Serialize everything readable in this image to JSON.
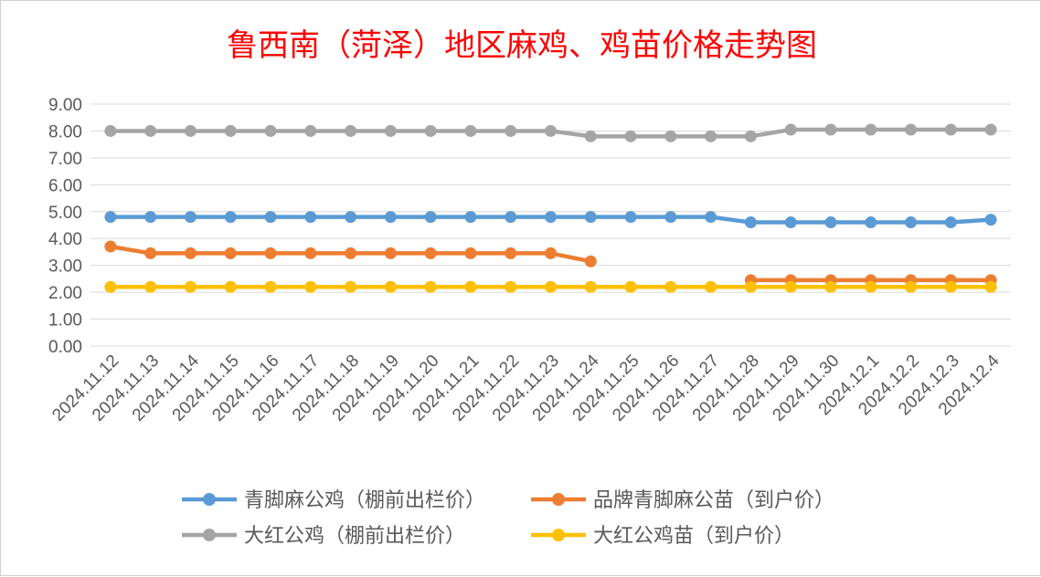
{
  "chart_data": {
    "type": "line",
    "title": "鲁西南（菏泽）地区麻鸡、鸡苗价格走势图",
    "xlabel": "",
    "ylabel": "",
    "ylim": [
      0,
      9
    ],
    "y_ticks": [
      "0.00",
      "1.00",
      "2.00",
      "3.00",
      "4.00",
      "5.00",
      "6.00",
      "7.00",
      "8.00",
      "9.00"
    ],
    "categories": [
      "2024.11.12",
      "2024.11.13",
      "2024.11.14",
      "2024.11.15",
      "2024.11.16",
      "2024.11.17",
      "2024.11.18",
      "2024.11.19",
      "2024.11.20",
      "2024.11.21",
      "2024.11.22",
      "2024.11.23",
      "2024.11.24",
      "2024.11.25",
      "2024.11.26",
      "2024.11.27",
      "2024.11.28",
      "2024.11.29",
      "2024.11.30",
      "2024.12.1",
      "2024.12.2",
      "2024.12.3",
      "2024.12.4"
    ],
    "grid": true,
    "legend_position": "bottom",
    "series": [
      {
        "name": "青脚麻公鸡（棚前出栏价）",
        "color": "#5B9BD5",
        "values": [
          4.8,
          4.8,
          4.8,
          4.8,
          4.8,
          4.8,
          4.8,
          4.8,
          4.8,
          4.8,
          4.8,
          4.8,
          4.8,
          4.8,
          4.8,
          4.8,
          4.6,
          4.6,
          4.6,
          4.6,
          4.6,
          4.6,
          4.7
        ]
      },
      {
        "name": "品牌青脚麻公苗（到户价）",
        "color": "#ED7D31",
        "values": [
          3.7,
          3.45,
          3.45,
          3.45,
          3.45,
          3.45,
          3.45,
          3.45,
          3.45,
          3.45,
          3.45,
          3.45,
          3.15,
          null,
          null,
          null,
          2.45,
          2.45,
          2.45,
          2.45,
          2.45,
          2.45,
          2.45
        ]
      },
      {
        "name": "大红公鸡（棚前出栏价）",
        "color": "#A5A5A5",
        "values": [
          8.0,
          8.0,
          8.0,
          8.0,
          8.0,
          8.0,
          8.0,
          8.0,
          8.0,
          8.0,
          8.0,
          8.0,
          7.8,
          7.8,
          7.8,
          7.8,
          7.8,
          8.05,
          8.05,
          8.05,
          8.05,
          8.05,
          8.05
        ]
      },
      {
        "name": "大红公鸡苗（到户价）",
        "color": "#FFC000",
        "values": [
          2.2,
          2.2,
          2.2,
          2.2,
          2.2,
          2.2,
          2.2,
          2.2,
          2.2,
          2.2,
          2.2,
          2.2,
          2.2,
          2.2,
          2.2,
          2.2,
          2.2,
          2.2,
          2.2,
          2.2,
          2.2,
          2.2,
          2.2
        ]
      }
    ]
  },
  "colors": {
    "title": "#FF0000",
    "grid": "#D9D9D9",
    "text": "#595959"
  }
}
